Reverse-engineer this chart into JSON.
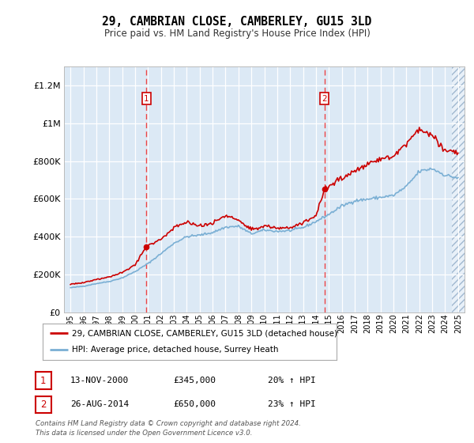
{
  "title": "29, CAMBRIAN CLOSE, CAMBERLEY, GU15 3LD",
  "subtitle": "Price paid vs. HM Land Registry's House Price Index (HPI)",
  "legend_line1": "29, CAMBRIAN CLOSE, CAMBERLEY, GU15 3LD (detached house)",
  "legend_line2": "HPI: Average price, detached house, Surrey Heath",
  "footnote1": "Contains HM Land Registry data © Crown copyright and database right 2024.",
  "footnote2": "This data is licensed under the Open Government Licence v3.0.",
  "sale1_date": "13-NOV-2000",
  "sale1_price": "£345,000",
  "sale1_hpi": "20% ↑ HPI",
  "sale2_date": "26-AUG-2014",
  "sale2_price": "£650,000",
  "sale2_hpi": "23% ↑ HPI",
  "background_color": "#dce9f5",
  "line_red": "#cc0000",
  "line_blue": "#7aafd4",
  "vline_color": "#ee3333",
  "marker1_x": 2000.87,
  "marker1_y": 345000,
  "marker2_x": 2014.65,
  "marker2_y": 650000,
  "ylim": [
    0,
    1300000
  ],
  "xlim_start": 1994.5,
  "xlim_end": 2025.5,
  "yticks": [
    0,
    200000,
    400000,
    600000,
    800000,
    1000000,
    1200000
  ],
  "ytick_labels": [
    "£0",
    "£200K",
    "£400K",
    "£600K",
    "£800K",
    "£1M",
    "£1.2M"
  ],
  "hpi_anchors": [
    [
      1995,
      130000
    ],
    [
      1996,
      138000
    ],
    [
      1997,
      152000
    ],
    [
      1998,
      163000
    ],
    [
      1999,
      182000
    ],
    [
      2000,
      215000
    ],
    [
      2001,
      258000
    ],
    [
      2002,
      310000
    ],
    [
      2003,
      365000
    ],
    [
      2004,
      400000
    ],
    [
      2005,
      408000
    ],
    [
      2006,
      422000
    ],
    [
      2007,
      450000
    ],
    [
      2008,
      455000
    ],
    [
      2009,
      415000
    ],
    [
      2010,
      435000
    ],
    [
      2011,
      428000
    ],
    [
      2012,
      432000
    ],
    [
      2013,
      448000
    ],
    [
      2014,
      480000
    ],
    [
      2015,
      518000
    ],
    [
      2016,
      562000
    ],
    [
      2017,
      590000
    ],
    [
      2018,
      598000
    ],
    [
      2019,
      608000
    ],
    [
      2020,
      618000
    ],
    [
      2021,
      665000
    ],
    [
      2022,
      745000
    ],
    [
      2023,
      760000
    ],
    [
      2024,
      725000
    ],
    [
      2025,
      710000
    ]
  ],
  "red_anchors": [
    [
      1995,
      148000
    ],
    [
      1996,
      157000
    ],
    [
      1997,
      174000
    ],
    [
      1998,
      188000
    ],
    [
      1999,
      210000
    ],
    [
      2000,
      252000
    ],
    [
      2000.87,
      345000
    ],
    [
      2001,
      348000
    ],
    [
      2002,
      385000
    ],
    [
      2003,
      448000
    ],
    [
      2004,
      475000
    ],
    [
      2005,
      455000
    ],
    [
      2006,
      472000
    ],
    [
      2007,
      510000
    ],
    [
      2008,
      488000
    ],
    [
      2009,
      435000
    ],
    [
      2010,
      458000
    ],
    [
      2011,
      445000
    ],
    [
      2012,
      450000
    ],
    [
      2013,
      472000
    ],
    [
      2014,
      510000
    ],
    [
      2014.65,
      650000
    ],
    [
      2015,
      665000
    ],
    [
      2016,
      710000
    ],
    [
      2017,
      748000
    ],
    [
      2018,
      790000
    ],
    [
      2019,
      808000
    ],
    [
      2020,
      825000
    ],
    [
      2021,
      888000
    ],
    [
      2022,
      965000
    ],
    [
      2023,
      935000
    ],
    [
      2024,
      855000
    ],
    [
      2025,
      840000
    ]
  ]
}
